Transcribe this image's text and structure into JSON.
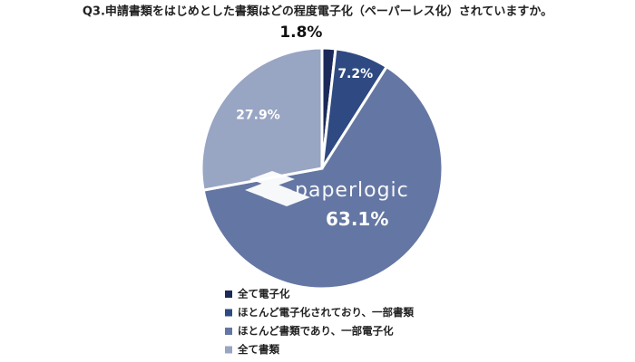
{
  "chart_data": {
    "type": "pie",
    "title": "Q3.申請書類をはじめとした書類はどの程度電子化（ペーパーレス化）されていますか。",
    "categories": [
      "全て電子化",
      "ほとんど電子化されており、一部書類",
      "ほとんど書類であり、一部電子化",
      "全て書類"
    ],
    "values": [
      1.8,
      7.2,
      63.1,
      27.9
    ],
    "value_labels": [
      "1.8%",
      "7.2%",
      "63.1%",
      "27.9%"
    ],
    "colors": [
      "#1c2a5a",
      "#2f4a82",
      "#6476a3",
      "#98a5c3"
    ],
    "legend": "bottom",
    "watermark": "paperlogic"
  }
}
